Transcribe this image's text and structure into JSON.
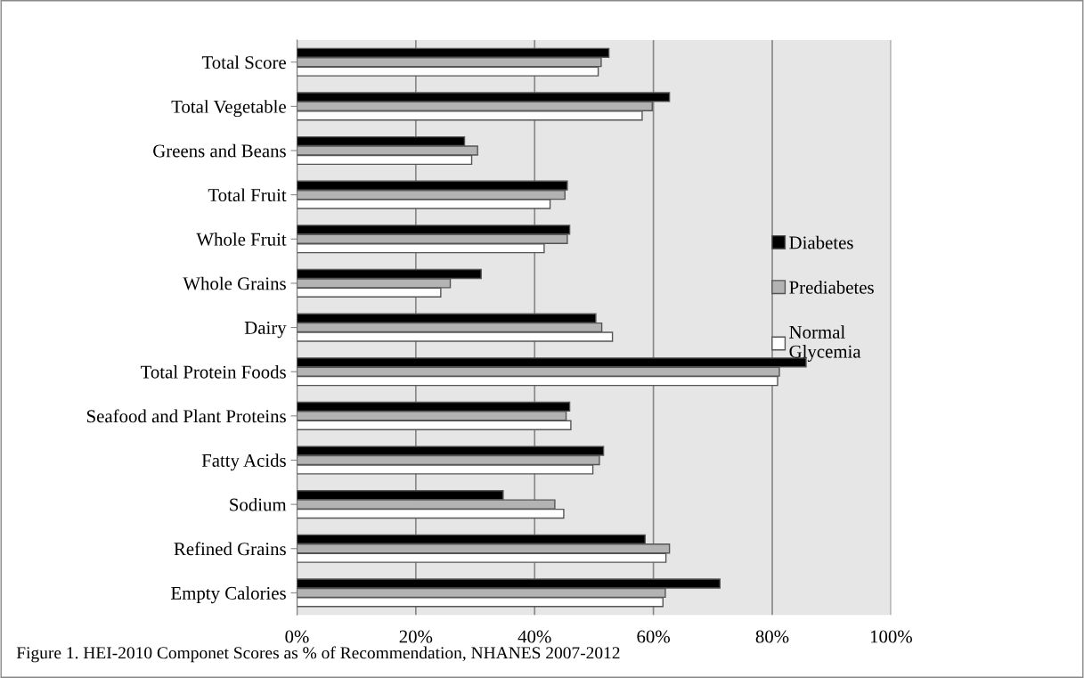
{
  "chart_data": {
    "type": "bar",
    "orientation": "horizontal",
    "categories": [
      "Total Score",
      "Total Vegetable",
      "Greens and Beans",
      "Total Fruit",
      "Whole Fruit",
      "Whole Grains",
      "Dairy",
      "Total Protein Foods",
      "Seafood and Plant Proteins",
      "Fatty Acids",
      "Sodium",
      "Refined Grains",
      "Empty Calories"
    ],
    "series": [
      {
        "name": "Diabetes",
        "color": "#000000",
        "values": [
          52.5,
          62.7,
          28.2,
          45.5,
          45.9,
          31.0,
          50.3,
          85.7,
          45.9,
          51.6,
          34.7,
          58.6,
          71.2
        ]
      },
      {
        "name": "Prediabetes",
        "color": "#b3b3b3",
        "values": [
          51.2,
          59.8,
          30.4,
          45.1,
          45.5,
          25.8,
          51.3,
          81.2,
          45.3,
          50.9,
          43.4,
          62.7,
          62.0
        ]
      },
      {
        "name": "Normal Glycemia",
        "color": "#ffffff",
        "values": [
          50.7,
          58.1,
          29.4,
          42.6,
          41.6,
          24.2,
          53.1,
          80.9,
          46.1,
          49.8,
          44.9,
          62.1,
          61.6
        ]
      }
    ],
    "xlim": [
      0,
      100
    ],
    "xticks": [
      {
        "value": 0,
        "label": "0%"
      },
      {
        "value": 20,
        "label": "20%"
      },
      {
        "value": 40,
        "label": "40%"
      },
      {
        "value": 60,
        "label": "60%"
      },
      {
        "value": 80,
        "label": "80%"
      },
      {
        "value": 100,
        "label": "100%"
      }
    ],
    "grid": "x",
    "legend": "right",
    "annotations": [
      "Figure 1. HEI-2010 Componet Scores as % of Recommendation, NHANES 2007-2012"
    ]
  }
}
